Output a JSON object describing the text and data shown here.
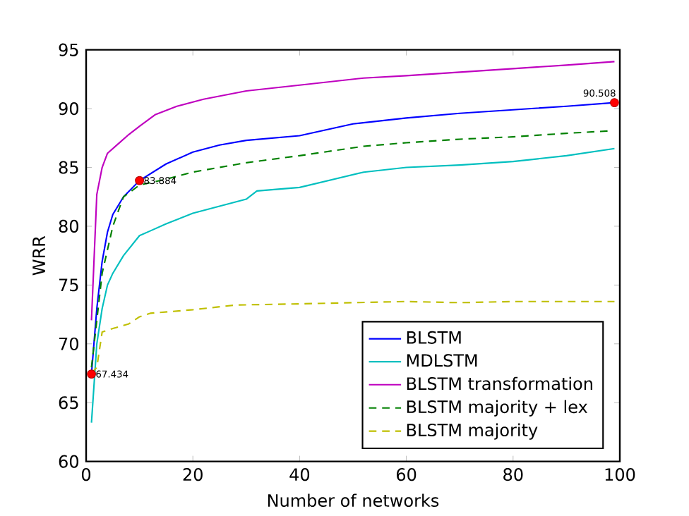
{
  "chart_data": {
    "type": "line",
    "xlabel": "Number of networks",
    "ylabel": "WRR",
    "xlim": [
      0,
      100
    ],
    "ylim": [
      60,
      95
    ],
    "xticks": [
      0,
      20,
      40,
      60,
      80,
      100
    ],
    "yticks": [
      60,
      65,
      70,
      75,
      80,
      85,
      90,
      95
    ],
    "legend": "bottom right",
    "grid": false,
    "series": [
      {
        "name": "BLSTM",
        "color": "#0000ff",
        "line_style": "solid",
        "x": [
          1,
          2,
          3,
          4,
          5,
          7,
          10,
          15,
          20,
          25,
          30,
          40,
          50,
          60,
          70,
          80,
          90,
          99
        ],
        "values": [
          67.434,
          73,
          77,
          79.5,
          81,
          82.5,
          83.884,
          85.3,
          86.3,
          86.9,
          87.3,
          87.7,
          88.7,
          89.2,
          89.6,
          89.9,
          90.2,
          90.508
        ]
      },
      {
        "name": "MDLSTM",
        "color": "#00bfbf",
        "line_style": "solid",
        "x": [
          1,
          2,
          3,
          4,
          5,
          7,
          10,
          12,
          15,
          20,
          25,
          30,
          32,
          40,
          52,
          60,
          70,
          80,
          90,
          99
        ],
        "values": [
          63.3,
          70,
          73,
          75,
          76,
          77.5,
          79.2,
          79.6,
          80.2,
          81.1,
          81.7,
          82.3,
          83,
          83.3,
          84.6,
          85,
          85.2,
          85.5,
          86,
          86.6
        ]
      },
      {
        "name": "BLSTM transformation",
        "color": "#bf00bf",
        "line_style": "solid",
        "x": [
          1,
          2,
          3,
          4,
          6,
          8,
          10,
          13,
          17,
          22,
          30,
          40,
          52,
          60,
          70,
          80,
          90,
          99
        ],
        "values": [
          72,
          82.7,
          85,
          86.2,
          87,
          87.8,
          88.5,
          89.5,
          90.2,
          90.8,
          91.5,
          92,
          92.6,
          92.8,
          93.1,
          93.4,
          93.7,
          94
        ]
      },
      {
        "name": "BLSTM majority + lex",
        "color": "#008000",
        "line_style": "dashed",
        "x": [
          1,
          2,
          3,
          5,
          7,
          10,
          15,
          20,
          30,
          40,
          52,
          60,
          70,
          80,
          90,
          98
        ],
        "values": [
          68,
          72,
          76,
          80,
          82.5,
          83.5,
          84,
          84.6,
          85.4,
          86,
          86.8,
          87.1,
          87.4,
          87.6,
          87.9,
          88.1
        ]
      },
      {
        "name": "BLSTM majority",
        "color": "#bfbf00",
        "line_style": "dashed",
        "x": [
          1,
          2,
          3,
          5,
          8,
          10,
          12,
          20,
          28,
          40,
          60,
          70,
          80,
          99
        ],
        "values": [
          67.5,
          68,
          71,
          71.3,
          71.7,
          72.3,
          72.6,
          72.9,
          73.3,
          73.4,
          73.6,
          73.5,
          73.6,
          73.6
        ]
      }
    ],
    "annotations": [
      {
        "text": "67.434",
        "x": 1,
        "y": 67.434
      },
      {
        "text": "83.884",
        "x": 10,
        "y": 83.884
      },
      {
        "text": "90.508",
        "x": 99,
        "y": 90.508
      }
    ]
  }
}
